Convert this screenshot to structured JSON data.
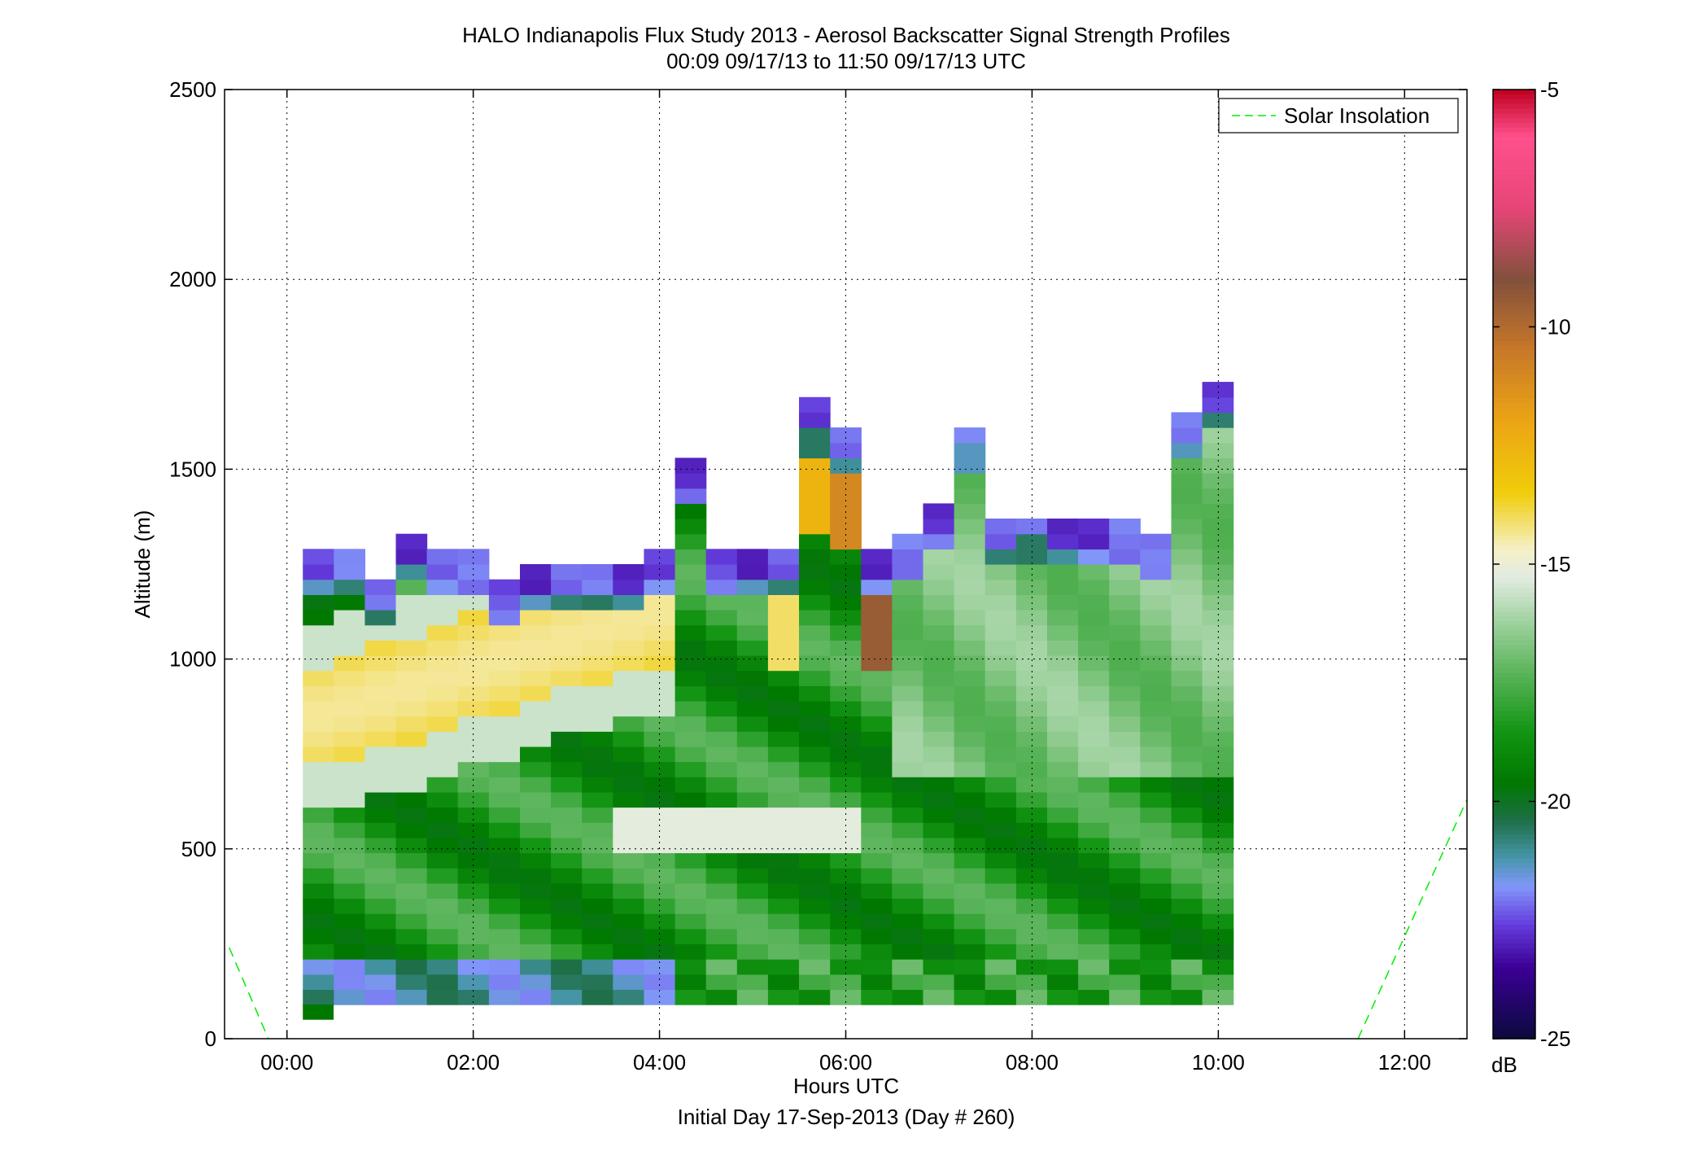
{
  "chart_data": {
    "type": "heatmap",
    "title": "HALO Indianapolis Flux Study 2013 - Aerosol Backscatter Signal Strength Profiles",
    "subtitle": "00:09 09/17/13 to 11:50 09/17/13  UTC",
    "xlabel": "Hours UTC",
    "xlabel2": "Initial Day 17-Sep-2013 (Day # 260)",
    "ylabel": "Altitude (m)",
    "x_ticks": [
      "00:00",
      "02:00",
      "04:00",
      "06:00",
      "08:00",
      "10:00",
      "12:00"
    ],
    "y_ticks": [
      "0",
      "500",
      "1000",
      "1500",
      "2000",
      "2500"
    ],
    "xlim_hours": [
      -0.67,
      12.67
    ],
    "ylim": [
      0,
      2500
    ],
    "grid": true,
    "legend": {
      "placement": "top-right",
      "entries": [
        {
          "name": "Solar Insolation",
          "color": "#00ee00",
          "style": "dashed"
        }
      ]
    },
    "colorbar": {
      "label": "dB",
      "range": [
        -25,
        -5
      ],
      "ticks": [
        "-5",
        "-10",
        "-15",
        "-20",
        "-25"
      ],
      "colormap": "custom (navy-purple-blue-teal-green-white-yellow-orange-brown-pink-red)"
    },
    "heatmap_grid": {
      "time_start_hours": 0.17,
      "time_step_hours": 0.333,
      "altitude_start_m": 90,
      "altitude_step_m": 40,
      "note_values": "dB per cell, columns over time, rows bottom-to-top"
    },
    "solar_insolation": {
      "x_hours": [
        -0.62,
        -0.2,
        11.5,
        12.67
      ],
      "y_m": [
        240,
        0,
        0,
        630
      ],
      "segments": [
        [
          0,
          1
        ],
        [
          2,
          3
        ]
      ]
    },
    "colors": {
      "axis": "#000000",
      "grid": "#000000",
      "background": "#ffffff"
    }
  }
}
